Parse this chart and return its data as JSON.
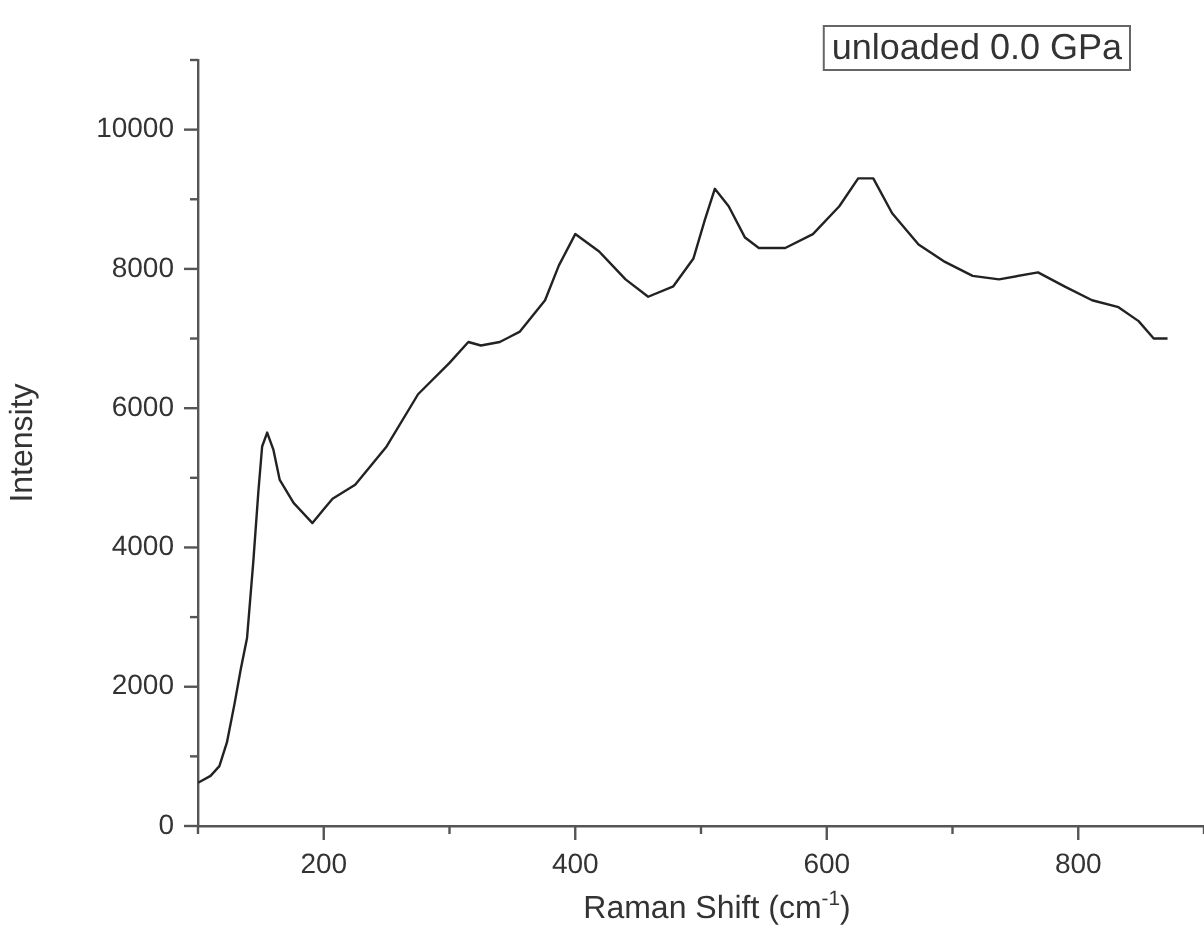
{
  "chart_data": {
    "type": "line",
    "xlabel": "Raman Shift (cm$^{-1}$)",
    "ylabel": "Intensity",
    "annotations": [
      "unloaded 0.0 GPa"
    ],
    "xlim": [
      100,
      900
    ],
    "ylim": [
      0,
      11000
    ],
    "xticks": [
      {
        "value": 100,
        "label": null
      },
      200,
      {
        "value": 300,
        "label": null
      },
      400,
      {
        "value": 500,
        "label": null
      },
      600,
      {
        "value": 700,
        "label": null
      },
      800,
      {
        "value": 900,
        "label": null
      }
    ],
    "yticks": [
      0,
      {
        "value": 1000,
        "label": null
      },
      2000,
      {
        "value": 3000,
        "label": null
      },
      4000,
      {
        "value": 5000,
        "label": null
      },
      6000,
      {
        "value": 7000,
        "label": null
      },
      8000,
      {
        "value": 9000,
        "label": null
      },
      10000,
      {
        "value": 11000,
        "label": null
      }
    ],
    "marker": "none",
    "line_style": "solid",
    "legend": false,
    "series": [
      {
        "color": "#222222",
        "x": [
          100,
          110,
          117,
          123,
          129,
          134,
          139,
          144,
          148,
          151,
          155,
          160,
          165,
          176,
          191,
          200,
          207,
          225,
          250,
          275,
          300,
          315,
          325,
          340,
          356,
          376,
          387,
          400,
          419,
          440,
          458,
          478,
          494,
          503,
          511,
          522,
          535,
          546,
          567,
          589,
          610,
          625,
          637,
          652,
          673,
          694,
          716,
          737,
          768,
          789,
          811,
          832,
          848,
          860,
          871
        ],
        "values": [
          620,
          720,
          860,
          1200,
          1750,
          2250,
          2700,
          3800,
          4800,
          5450,
          5650,
          5400,
          4970,
          4640,
          4350,
          4550,
          4700,
          4900,
          5450,
          6200,
          6650,
          6950,
          6900,
          6950,
          7100,
          7550,
          8050,
          8500,
          8250,
          7850,
          7600,
          7750,
          8150,
          8700,
          9150,
          8900,
          8450,
          8300,
          8300,
          8500,
          8900,
          9300,
          9300,
          8800,
          8350,
          8100,
          7900,
          7850,
          7950,
          7750,
          7550,
          7450,
          7250,
          7000,
          7000
        ]
      }
    ]
  }
}
